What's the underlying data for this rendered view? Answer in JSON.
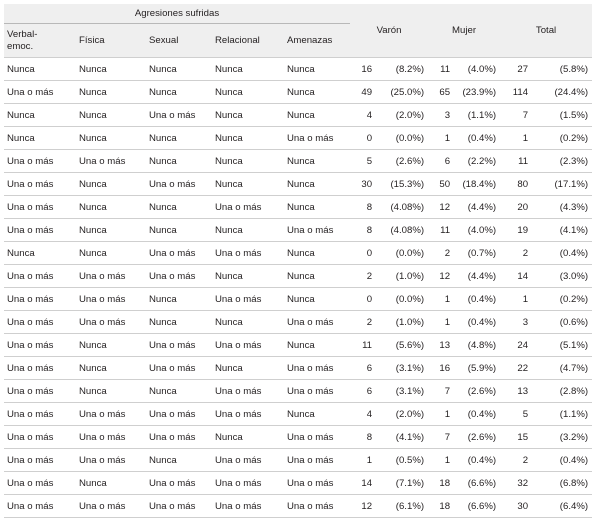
{
  "header": {
    "group_label": "Agresiones sufridas",
    "columns": [
      "Verbal-\nemoc.",
      "Física",
      "Sexual",
      "Relacional",
      "Amenazas"
    ],
    "varon": "Varón",
    "mujer": "Mujer",
    "total": "Total"
  },
  "rows": [
    {
      "v": "Nunca",
      "f": "Nunca",
      "s": "Nunca",
      "r": "Nunca",
      "a": "Nunca",
      "vn": "16",
      "vp": "(8.2%)",
      "mn": "11",
      "mp": "(4.0%)",
      "tn": "27",
      "tp": "(5.8%)"
    },
    {
      "v": "Una o más",
      "f": "Nunca",
      "s": "Nunca",
      "r": "Nunca",
      "a": "Nunca",
      "vn": "49",
      "vp": "(25.0%)",
      "mn": "65",
      "mp": "(23.9%)",
      "tn": "114",
      "tp": "(24.4%)"
    },
    {
      "v": "Nunca",
      "f": "Nunca",
      "s": "Una o más",
      "r": "Nunca",
      "a": "Nunca",
      "vn": "4",
      "vp": "(2.0%)",
      "mn": "3",
      "mp": "(1.1%)",
      "tn": "7",
      "tp": "(1.5%)"
    },
    {
      "v": "Nunca",
      "f": "Nunca",
      "s": "Nunca",
      "r": "Nunca",
      "a": "Una o más",
      "vn": "0",
      "vp": "(0.0%)",
      "mn": "1",
      "mp": "(0.4%)",
      "tn": "1",
      "tp": "(0.2%)"
    },
    {
      "v": "Una o más",
      "f": "Una o más",
      "s": "Nunca",
      "r": "Nunca",
      "a": "Nunca",
      "vn": "5",
      "vp": "(2.6%)",
      "mn": "6",
      "mp": "(2.2%)",
      "tn": "11",
      "tp": "(2.3%)"
    },
    {
      "v": "Una o más",
      "f": "Nunca",
      "s": "Una o más",
      "r": "Nunca",
      "a": "Nunca",
      "vn": "30",
      "vp": "(15.3%)",
      "mn": "50",
      "mp": "(18.4%)",
      "tn": "80",
      "tp": "(17.1%)"
    },
    {
      "v": "Una o más",
      "f": "Nunca",
      "s": "Nunca",
      "r": "Una o más",
      "a": "Nunca",
      "vn": "8",
      "vp": "(4.08%)",
      "mn": "12",
      "mp": "(4.4%)",
      "tn": "20",
      "tp": "(4.3%)"
    },
    {
      "v": "Una o más",
      "f": "Nunca",
      "s": "Nunca",
      "r": "Nunca",
      "a": "Una o más",
      "vn": "8",
      "vp": "(4.08%)",
      "mn": "11",
      "mp": "(4.0%)",
      "tn": "19",
      "tp": "(4.1%)"
    },
    {
      "v": "Nunca",
      "f": "Nunca",
      "s": "Una o más",
      "r": "Una o más",
      "a": "Nunca",
      "vn": "0",
      "vp": "(0.0%)",
      "mn": "2",
      "mp": "(0.7%)",
      "tn": "2",
      "tp": "(0.4%)"
    },
    {
      "v": "Una o más",
      "f": "Una o más",
      "s": "Una o más",
      "r": "Nunca",
      "a": "Nunca",
      "vn": "2",
      "vp": "(1.0%)",
      "mn": "12",
      "mp": "(4.4%)",
      "tn": "14",
      "tp": "(3.0%)"
    },
    {
      "v": "Una o más",
      "f": "Una o más",
      "s": "Nunca",
      "r": "Una o más",
      "a": "Nunca",
      "vn": "0",
      "vp": "(0.0%)",
      "mn": "1",
      "mp": "(0.4%)",
      "tn": "1",
      "tp": "(0.2%)"
    },
    {
      "v": "Una o más",
      "f": "Una o más",
      "s": "Nunca",
      "r": "Nunca",
      "a": "Una o más",
      "vn": "2",
      "vp": "(1.0%)",
      "mn": "1",
      "mp": "(0.4%)",
      "tn": "3",
      "tp": "(0.6%)"
    },
    {
      "v": "Una o más",
      "f": "Nunca",
      "s": "Una o más",
      "r": "Una o más",
      "a": "Nunca",
      "vn": "11",
      "vp": "(5.6%)",
      "mn": "13",
      "mp": "(4.8%)",
      "tn": "24",
      "tp": "(5.1%)"
    },
    {
      "v": "Una o más",
      "f": "Nunca",
      "s": "Una o más",
      "r": "Nunca",
      "a": "Una o más",
      "vn": "6",
      "vp": "(3.1%)",
      "mn": "16",
      "mp": "(5.9%)",
      "tn": "22",
      "tp": "(4.7%)"
    },
    {
      "v": "Una o más",
      "f": "Nunca",
      "s": "Nunca",
      "r": "Una o más",
      "a": "Una o más",
      "vn": "6",
      "vp": "(3.1%)",
      "mn": "7",
      "mp": "(2.6%)",
      "tn": "13",
      "tp": "(2.8%)"
    },
    {
      "v": "Una o más",
      "f": "Una o más",
      "s": "Una o más",
      "r": "Una o más",
      "a": "Nunca",
      "vn": "4",
      "vp": "(2.0%)",
      "mn": "1",
      "mp": "(0.4%)",
      "tn": "5",
      "tp": "(1.1%)"
    },
    {
      "v": "Una o más",
      "f": "Una o más",
      "s": "Una o más",
      "r": "Nunca",
      "a": "Una o más",
      "vn": "8",
      "vp": "(4.1%)",
      "mn": "7",
      "mp": "(2.6%)",
      "tn": "15",
      "tp": "(3.2%)"
    },
    {
      "v": "Una o más",
      "f": "Una o más",
      "s": "Nunca",
      "r": "Una o más",
      "a": "Una o más",
      "vn": "1",
      "vp": "(0.5%)",
      "mn": "1",
      "mp": "(0.4%)",
      "tn": "2",
      "tp": "(0.4%)"
    },
    {
      "v": "Una o más",
      "f": "Nunca",
      "s": "Una o más",
      "r": "Una o más",
      "a": "Una o más",
      "vn": "14",
      "vp": "(7.1%)",
      "mn": "18",
      "mp": "(6.6%)",
      "tn": "32",
      "tp": "(6.8%)"
    },
    {
      "v": "Una o más",
      "f": "Una o más",
      "s": "Una o más",
      "r": "Una o más",
      "a": "Una o más",
      "vn": "12",
      "vp": "(6.1%)",
      "mn": "18",
      "mp": "(6.6%)",
      "tn": "30",
      "tp": "(6.4%)"
    }
  ]
}
